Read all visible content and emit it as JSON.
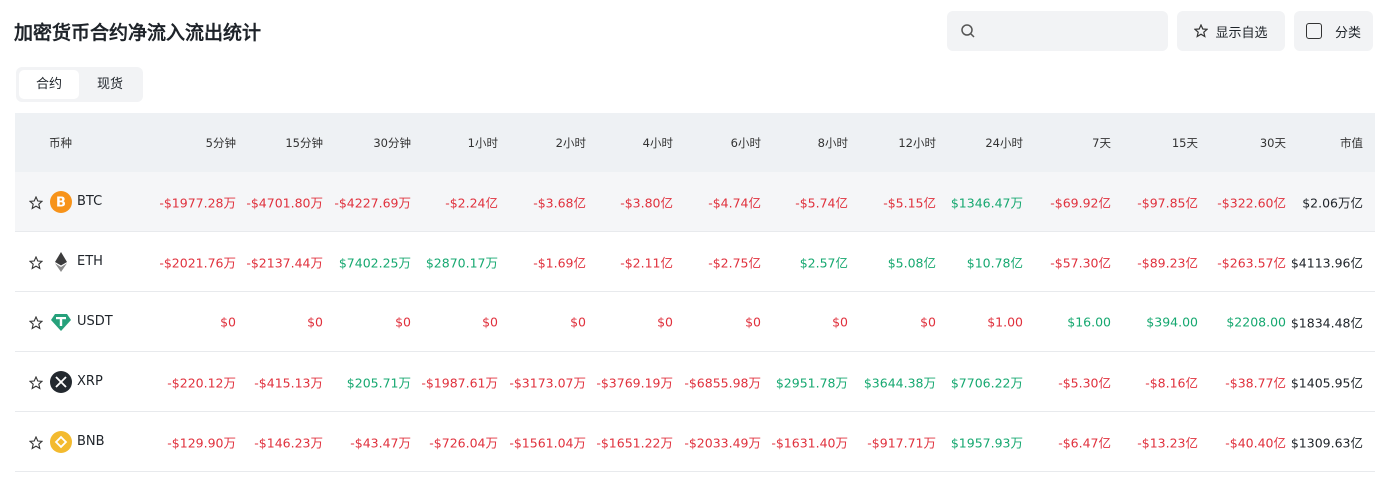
{
  "header": {
    "title": "加密货币合约净流入流出统计",
    "show_favorites": "显示自选",
    "category": "分类"
  },
  "tabs": [
    "合约",
    "现货"
  ],
  "table": {
    "columns": [
      "币种",
      "5分钟",
      "15分钟",
      "30分钟",
      "1小时",
      "2小时",
      "4小时",
      "6小时",
      "8小时",
      "12小时",
      "24小时",
      "7天",
      "15天",
      "30天",
      "市值"
    ],
    "rows": [
      {
        "symbol": "BTC",
        "cells": [
          "-$1977.28万",
          "-$4701.80万",
          "-$4227.69万",
          "-$2.24亿",
          "-$3.68亿",
          "-$3.80亿",
          "-$4.74亿",
          "-$5.74亿",
          "-$5.15亿",
          "$1346.47万",
          "-$69.92亿",
          "-$97.85亿",
          "-$322.60亿",
          "$2.06万亿"
        ],
        "colors": [
          "#e0313d",
          "#e0313d",
          "#e0313d",
          "#e0313d",
          "#e0313d",
          "#e0313d",
          "#e0313d",
          "#e0313d",
          "#e0313d",
          "#16a870",
          "#e0313d",
          "#e0313d",
          "#e0313d"
        ]
      },
      {
        "symbol": "ETH",
        "cells": [
          "-$2021.76万",
          "-$2137.44万",
          "$7402.25万",
          "$2870.17万",
          "-$1.69亿",
          "-$2.11亿",
          "-$2.75亿",
          "$2.57亿",
          "$5.08亿",
          "$10.78亿",
          "-$57.30亿",
          "-$89.23亿",
          "-$263.57亿",
          "$4113.96亿"
        ],
        "colors": [
          "#e0313d",
          "#e0313d",
          "#16a870",
          "#16a870",
          "#e0313d",
          "#e0313d",
          "#e0313d",
          "#16a870",
          "#16a870",
          "#16a870",
          "#e0313d",
          "#e0313d",
          "#e0313d"
        ]
      },
      {
        "symbol": "USDT",
        "cells": [
          "$0",
          "$0",
          "$0",
          "$0",
          "$0",
          "$0",
          "$0",
          "$0",
          "$0",
          "$1.00",
          "$16.00",
          "$394.00",
          "$2208.00",
          "$1834.48亿"
        ],
        "colors": [
          "#e0313d",
          "#e0313d",
          "#e0313d",
          "#e0313d",
          "#e0313d",
          "#e0313d",
          "#e0313d",
          "#e0313d",
          "#e0313d",
          "#e0313d",
          "#16a870",
          "#16a870",
          "#16a870"
        ]
      },
      {
        "symbol": "XRP",
        "cells": [
          "-$220.12万",
          "-$415.13万",
          "$205.71万",
          "-$1987.61万",
          "-$3173.07万",
          "-$3769.19万",
          "-$6855.98万",
          "$2951.78万",
          "$3644.38万",
          "$7706.22万",
          "-$5.30亿",
          "-$8.16亿",
          "-$38.77亿",
          "$1405.95亿"
        ],
        "colors": [
          "#e0313d",
          "#e0313d",
          "#16a870",
          "#e0313d",
          "#e0313d",
          "#e0313d",
          "#e0313d",
          "#16a870",
          "#16a870",
          "#16a870",
          "#e0313d",
          "#e0313d",
          "#e0313d"
        ]
      },
      {
        "symbol": "BNB",
        "cells": [
          "-$129.90万",
          "-$146.23万",
          "-$43.47万",
          "-$726.04万",
          "-$1561.04万",
          "-$1651.22万",
          "-$2033.49万",
          "-$1631.40万",
          "-$917.71万",
          "$1957.93万",
          "-$6.47亿",
          "-$13.23亿",
          "-$40.40亿",
          "$1309.63亿"
        ],
        "colors": [
          "#e0313d",
          "#e0313d",
          "#e0313d",
          "#e0313d",
          "#e0313d",
          "#e0313d",
          "#e0313d",
          "#e0313d",
          "#e0313d",
          "#16a870",
          "#e0313d",
          "#e0313d",
          "#e0313d"
        ]
      }
    ]
  }
}
